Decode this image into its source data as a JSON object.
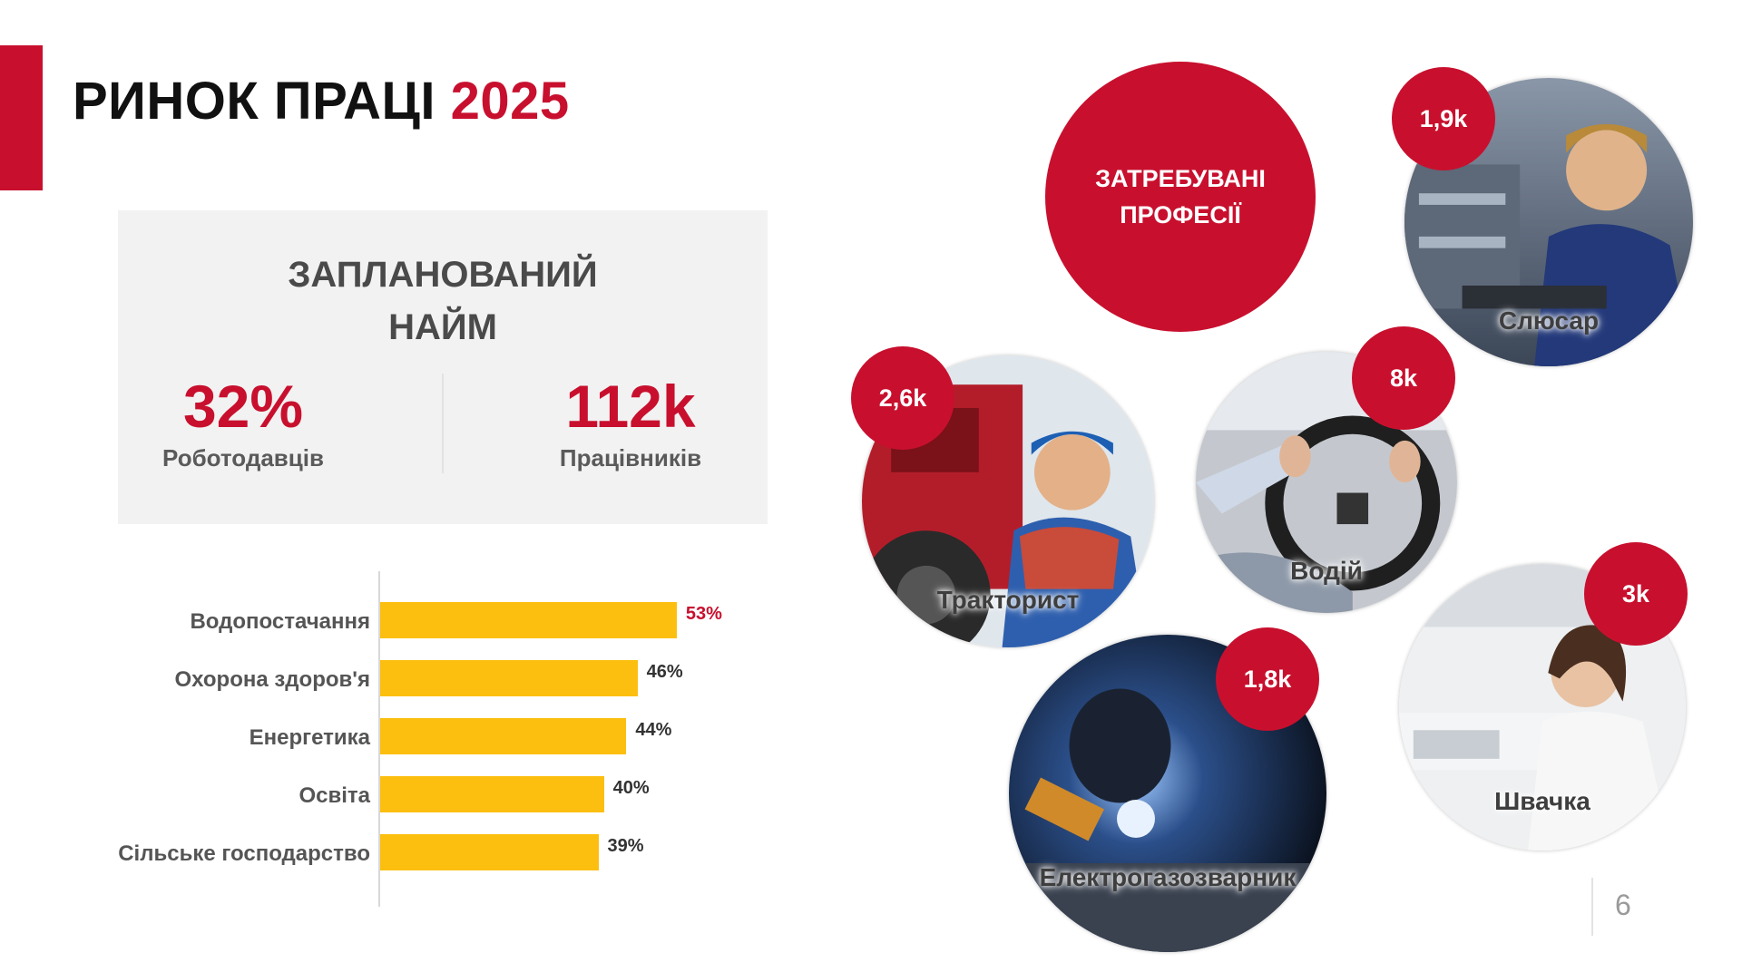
{
  "title": {
    "main": "РИНОК ПРАЦІ",
    "year": "2025"
  },
  "hiring": {
    "title_line1": "ЗАПЛАНОВАНИЙ",
    "title_line2": "НАЙМ",
    "stats": [
      {
        "value": "32%",
        "label": "Роботодавців"
      },
      {
        "value": "112k",
        "label": "Працівників"
      }
    ]
  },
  "chart_data": {
    "type": "bar",
    "orientation": "horizontal",
    "categories": [
      "Водопостачання",
      "Охорона здоров'я",
      "Енергетика",
      "Освіта",
      "Сільське господарство"
    ],
    "values": [
      53,
      46,
      44,
      40,
      39
    ],
    "value_labels": [
      "53%",
      "46%",
      "44%",
      "40%",
      "39%"
    ],
    "highlight_color": "#c8102e",
    "bar_color": "#fcbf10",
    "xlim": [
      0,
      60
    ]
  },
  "demand": {
    "line1": "ЗАТРЕБУВАНІ",
    "line2": "ПРОФЕСІЇ"
  },
  "professions": [
    {
      "label": "Слюсар",
      "count": "1,9k",
      "icon": "locksmith-photo"
    },
    {
      "label": "Тракторист",
      "count": "2,6k",
      "icon": "tractor-driver-photo"
    },
    {
      "label": "Водій",
      "count": "8k",
      "icon": "driver-photo"
    },
    {
      "label": "Електрогазозварник",
      "count": "1,8k",
      "icon": "welder-photo"
    },
    {
      "label": "Швачка",
      "count": "3k",
      "icon": "seamstress-photo"
    }
  ],
  "page_number": "6",
  "colors": {
    "accent": "#c8102e",
    "bar": "#fcbf10",
    "card": "#f2f2f2"
  }
}
